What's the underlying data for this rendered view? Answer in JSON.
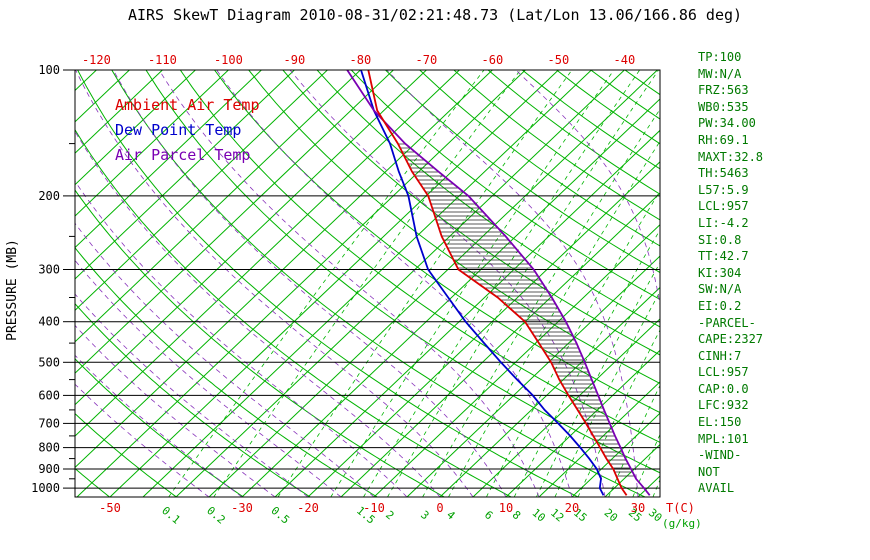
{
  "chart_data": {
    "type": "line",
    "title": "AIRS SkewT Diagram 2010-08-31/02:21:48.73 (Lat/Lon 13.06/166.86 deg)",
    "pressure_axis": {
      "label": "PRESSURE (MB)",
      "scale": "log",
      "range_mb": [
        100,
        1050
      ],
      "ticks_mb": [
        100,
        200,
        300,
        400,
        500,
        600,
        700,
        800,
        900,
        1000
      ],
      "minor_ticks_mb": [
        150,
        250,
        350,
        450,
        550,
        650,
        750,
        850,
        950
      ]
    },
    "temp_axis": {
      "unit_label": "T(C)",
      "label_color": "#dd0000",
      "top_tick_labels_C": [
        -120,
        -110,
        -100,
        -90,
        -80,
        -70,
        -60,
        -50,
        -40
      ],
      "bottom_tick_labels_C": [
        -50,
        -30,
        -20,
        -10,
        0,
        10,
        20,
        30
      ]
    },
    "isotherms": {
      "min_C": -125,
      "max_C": 35,
      "step_C": 5,
      "color": "#00b300"
    },
    "dry_adiabats": {
      "theta_min_K": 220,
      "theta_max_K": 460,
      "step_K": 10,
      "color": "#00b300"
    },
    "moist_adiabats": {
      "surface_temp_min_C": -35,
      "surface_temp_max_C": 40,
      "step_C": 5,
      "color": "#8833bb"
    },
    "mixing_ratio": {
      "unit_label": "(g/kg)",
      "color": "#00b300",
      "label_color": "#00a000",
      "values_g_kg": [
        0.1,
        0.2,
        0.5,
        1,
        1.5,
        2,
        3,
        4,
        6,
        8,
        10,
        12,
        15,
        20,
        25,
        30
      ],
      "label_values_g_kg": [
        0.1,
        0.2,
        0.5,
        1.5,
        2,
        3,
        4,
        6,
        8,
        10,
        12,
        15,
        20,
        25,
        30
      ]
    },
    "series": [
      {
        "name": "Ambient Air Temp",
        "color": "#dd0000",
        "pressure_mb": [
          1040,
          1000,
          950,
          900,
          850,
          800,
          750,
          700,
          650,
          600,
          550,
          500,
          450,
          400,
          350,
          300,
          250,
          200,
          175,
          150,
          125,
          100
        ],
        "temp_C": [
          28.0,
          26.1,
          24.0,
          21.8,
          19.1,
          16.4,
          13.5,
          10.4,
          7.0,
          3.3,
          -0.6,
          -4.6,
          -9.5,
          -15.0,
          -23.0,
          -33.4,
          -41.2,
          -49.7,
          -56.0,
          -62.6,
          -71.0,
          -78.8
        ]
      },
      {
        "name": "Dew Point Temp",
        "color": "#0000cc",
        "pressure_mb": [
          1040,
          1000,
          950,
          900,
          850,
          800,
          750,
          700,
          650,
          600,
          550,
          500,
          450,
          400,
          350,
          300,
          250,
          200,
          175,
          150,
          125,
          100
        ],
        "temp_C": [
          24.5,
          22.8,
          21.5,
          19.3,
          16.5,
          13.4,
          10.0,
          6.2,
          2.0,
          -2.1,
          -7.0,
          -12.2,
          -17.8,
          -24.0,
          -30.5,
          -38.0,
          -45.0,
          -52.7,
          -58.0,
          -63.8,
          -71.5,
          -79.9
        ]
      },
      {
        "name": "Air Parcel Temp",
        "color": "#7a00b3",
        "pressure_mb": [
          1040,
          1000,
          950,
          900,
          850,
          800,
          750,
          700,
          650,
          600,
          550,
          500,
          450,
          400,
          350,
          300,
          250,
          200,
          175,
          150,
          125,
          100
        ],
        "temp_C": [
          31.5,
          29.5,
          26.8,
          24.5,
          22.0,
          19.5,
          16.8,
          14.0,
          11.0,
          7.8,
          4.3,
          0.5,
          -3.8,
          -8.8,
          -14.8,
          -22.0,
          -31.5,
          -43.6,
          -52.0,
          -61.5,
          -71.5,
          -82.0
        ]
      }
    ],
    "cape_hatch": {
      "between": [
        "Ambient Air Temp",
        "Air Parcel Temp"
      ],
      "top_mb": 150,
      "bottom_mb": 940,
      "color": "#222222"
    }
  },
  "side_panel": {
    "color": "#007a00",
    "lines": [
      "TP:100",
      "MW:N/A",
      "FRZ:563",
      "WB0:535",
      "PW:34.00",
      "RH:69.1",
      "MAXT:32.8",
      "TH:5463",
      "L57:5.9",
      "LCL:957",
      "LI:-4.2",
      "SI:0.8",
      "TT:42.7",
      "KI:304",
      "SW:N/A",
      "EI:0.2",
      "-PARCEL-",
      "CAPE:2327",
      "CINH:7",
      "LCL:957",
      "CAP:0.0",
      "LFC:932",
      "EL:150",
      "MPL:101",
      "-WIND-",
      "NOT",
      "AVAIL"
    ]
  }
}
